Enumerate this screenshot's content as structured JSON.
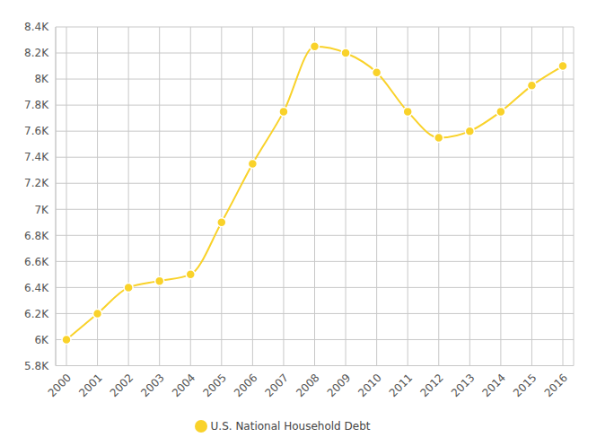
{
  "chart_data": {
    "type": "line",
    "categories": [
      "2000",
      "2001",
      "2002",
      "2003",
      "2004",
      "2005",
      "2006",
      "2007",
      "2008",
      "2009",
      "2010",
      "2011",
      "2012",
      "2013",
      "2014",
      "2015",
      "2016"
    ],
    "series": [
      {
        "name": "U.S. National Household Debt",
        "color": "#f9d22a",
        "values": [
          6000,
          6200,
          6400,
          6450,
          6500,
          6900,
          7350,
          7750,
          8250,
          8200,
          8050,
          7750,
          7550,
          7600,
          7750,
          7950,
          8100
        ]
      }
    ],
    "ylim": [
      5800,
      8400
    ],
    "yticks": [
      {
        "value": 5800,
        "label": "5.8K"
      },
      {
        "value": 6000,
        "label": "6K"
      },
      {
        "value": 6200,
        "label": "6.2K"
      },
      {
        "value": 6400,
        "label": "6.4K"
      },
      {
        "value": 6600,
        "label": "6.6K"
      },
      {
        "value": 6800,
        "label": "6.8K"
      },
      {
        "value": 7000,
        "label": "7K"
      },
      {
        "value": 7200,
        "label": "7.2K"
      },
      {
        "value": 7400,
        "label": "7.4K"
      },
      {
        "value": 7600,
        "label": "7.6K"
      },
      {
        "value": 7800,
        "label": "7.8K"
      },
      {
        "value": 8000,
        "label": "8K"
      },
      {
        "value": 8200,
        "label": "8.2K"
      },
      {
        "value": 8400,
        "label": "8.4K"
      }
    ],
    "grid": true,
    "legend": "bottom",
    "marker": "circle"
  }
}
